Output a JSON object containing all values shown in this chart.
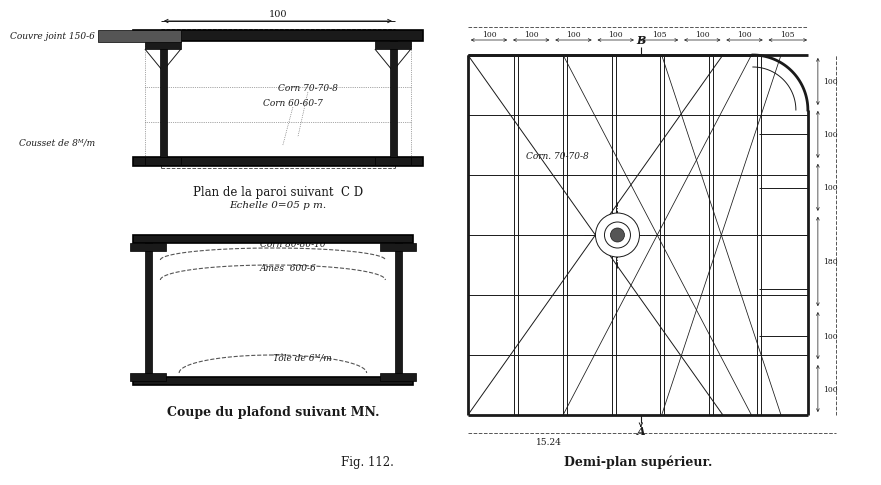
{
  "bg_color": "#ffffff",
  "lc": "#1a1a1a",
  "dc": "#555555",
  "title1": "Plan de la paroi suivant  C D",
  "subtitle1": "Echelle 0=05 p m.",
  "title2": "Coupe du plafond suivant MN.",
  "title3": "Demi-plan supérieur.",
  "fig_caption": "Fig. 112.",
  "label_tole_top": "Tôle de 6ᴹ/m",
  "label_couvre": "Couvre joint 150-6",
  "label_cousset": "Cousset de 8ᴹ/m",
  "label_corn1": "Corn 70-70-8",
  "label_corn2": "Corn 60-60-7",
  "label_corn3": "Corn 80-80-10",
  "label_ames": "Ames  600-6",
  "label_tole_bot": "Tôle de 6ᴹ/m",
  "label_corn_right": "Corn. 70-70-8",
  "dim_top": "100",
  "dim_bottom": "15.24",
  "dim_B": "B",
  "dim_A": "A",
  "dim_right": [
    "100",
    "100",
    "180",
    "100",
    "100",
    "100"
  ],
  "dim_top_right": [
    "100",
    "100",
    "100",
    "100",
    "105",
    "100",
    "100",
    "105"
  ]
}
